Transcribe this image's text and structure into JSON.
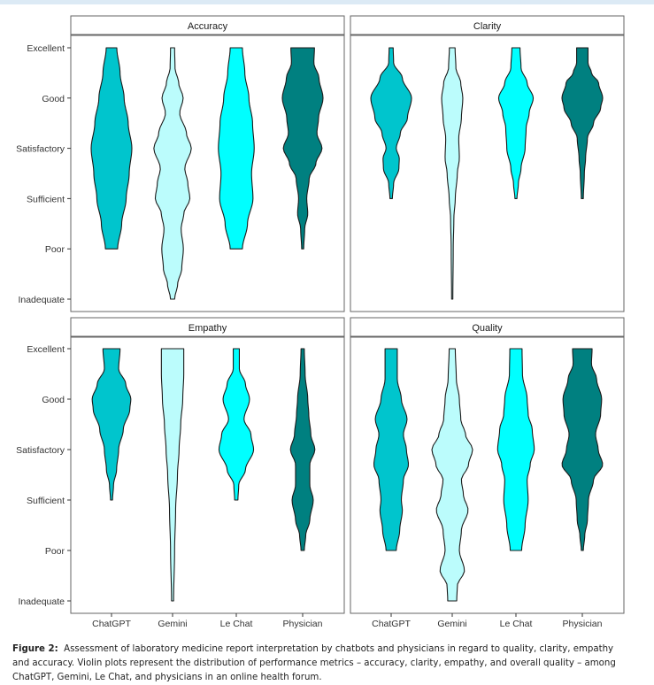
{
  "chart_data": {
    "type": "violin",
    "y_levels": [
      "Inadequate",
      "Poor",
      "Sufficient",
      "Satisfactory",
      "Good",
      "Excellent"
    ],
    "categories": [
      "ChatGPT",
      "Gemini",
      "Le Chat",
      "Physician"
    ],
    "colors": {
      "ChatGPT": "#00c5cd",
      "Gemini": "#bbfcfc",
      "Le Chat": "#00ffff",
      "Physician": "#008080"
    },
    "grid": false,
    "panels": [
      {
        "title": "Accuracy",
        "violins": [
          {
            "category": "ChatGPT",
            "range": [
              2,
              6
            ],
            "density": [
              [
                2,
                0.3
              ],
              [
                2.5,
                0.5
              ],
              [
                3,
                0.72
              ],
              [
                3.5,
                0.87
              ],
              [
                4,
                1.0
              ],
              [
                4.5,
                0.82
              ],
              [
                5,
                0.62
              ],
              [
                5.5,
                0.42
              ],
              [
                6,
                0.26
              ]
            ]
          },
          {
            "category": "Gemini",
            "range": [
              1,
              6
            ],
            "density": [
              [
                1,
                0.1
              ],
              [
                1.3,
                0.25
              ],
              [
                1.6,
                0.45
              ],
              [
                2,
                0.53
              ],
              [
                2.4,
                0.42
              ],
              [
                2.7,
                0.55
              ],
              [
                3,
                0.85
              ],
              [
                3.3,
                0.75
              ],
              [
                3.6,
                0.6
              ],
              [
                4,
                0.92
              ],
              [
                4.3,
                0.68
              ],
              [
                4.7,
                0.35
              ],
              [
                5,
                0.52
              ],
              [
                5.3,
                0.3
              ],
              [
                5.6,
                0.12
              ],
              [
                6,
                0.1
              ]
            ]
          },
          {
            "category": "Le Chat",
            "range": [
              2,
              6
            ],
            "density": [
              [
                2,
                0.3
              ],
              [
                2.5,
                0.55
              ],
              [
                3,
                0.82
              ],
              [
                3.5,
                0.75
              ],
              [
                4,
                0.88
              ],
              [
                4.5,
                0.8
              ],
              [
                5,
                0.62
              ],
              [
                5.5,
                0.42
              ],
              [
                6,
                0.3
              ]
            ]
          },
          {
            "category": "Physician",
            "range": [
              2,
              6
            ],
            "density": [
              [
                2,
                0.05
              ],
              [
                2.4,
                0.1
              ],
              [
                2.7,
                0.25
              ],
              [
                3,
                0.2
              ],
              [
                3.4,
                0.32
              ],
              [
                3.7,
                0.65
              ],
              [
                4,
                0.95
              ],
              [
                4.3,
                0.7
              ],
              [
                4.6,
                0.78
              ],
              [
                5,
                1.0
              ],
              [
                5.4,
                0.8
              ],
              [
                5.7,
                0.55
              ],
              [
                6,
                0.58
              ]
            ]
          }
        ]
      },
      {
        "title": "Clarity",
        "violins": [
          {
            "category": "ChatGPT",
            "range": [
              3,
              6
            ],
            "density": [
              [
                3,
                0.06
              ],
              [
                3.3,
                0.12
              ],
              [
                3.6,
                0.38
              ],
              [
                3.8,
                0.4
              ],
              [
                4,
                0.25
              ],
              [
                4.3,
                0.45
              ],
              [
                4.6,
                0.8
              ],
              [
                5,
                1.0
              ],
              [
                5.4,
                0.55
              ],
              [
                5.7,
                0.12
              ],
              [
                6,
                0.1
              ]
            ]
          },
          {
            "category": "Gemini",
            "range": [
              1,
              6
            ],
            "density": [
              [
                1,
                0.03
              ],
              [
                2,
                0.05
              ],
              [
                2.6,
                0.08
              ],
              [
                3,
                0.15
              ],
              [
                3.5,
                0.25
              ],
              [
                3.8,
                0.35
              ],
              [
                4.2,
                0.32
              ],
              [
                4.6,
                0.45
              ],
              [
                5,
                0.52
              ],
              [
                5.3,
                0.42
              ],
              [
                5.6,
                0.18
              ],
              [
                6,
                0.14
              ]
            ]
          },
          {
            "category": "Le Chat",
            "range": [
              3,
              6
            ],
            "density": [
              [
                3,
                0.05
              ],
              [
                3.3,
                0.12
              ],
              [
                3.6,
                0.25
              ],
              [
                4,
                0.45
              ],
              [
                4.4,
                0.5
              ],
              [
                4.7,
                0.65
              ],
              [
                5,
                0.85
              ],
              [
                5.3,
                0.55
              ],
              [
                5.6,
                0.25
              ],
              [
                6,
                0.2
              ]
            ]
          },
          {
            "category": "Physician",
            "range": [
              3,
              6
            ],
            "density": [
              [
                3,
                0.05
              ],
              [
                3.5,
                0.1
              ],
              [
                3.8,
                0.16
              ],
              [
                4.2,
                0.25
              ],
              [
                4.5,
                0.55
              ],
              [
                4.8,
                0.9
              ],
              [
                5,
                1.0
              ],
              [
                5.3,
                0.8
              ],
              [
                5.5,
                0.45
              ],
              [
                5.7,
                0.28
              ],
              [
                6,
                0.28
              ]
            ]
          }
        ]
      },
      {
        "title": "Empathy",
        "violins": [
          {
            "category": "ChatGPT",
            "range": [
              3,
              6
            ],
            "density": [
              [
                3,
                0.05
              ],
              [
                3.3,
                0.1
              ],
              [
                3.6,
                0.25
              ],
              [
                4,
                0.35
              ],
              [
                4.4,
                0.58
              ],
              [
                4.8,
                0.9
              ],
              [
                5,
                0.95
              ],
              [
                5.3,
                0.7
              ],
              [
                5.6,
                0.35
              ],
              [
                6,
                0.42
              ]
            ]
          },
          {
            "category": "Gemini",
            "range": [
              1,
              6
            ],
            "density": [
              [
                1,
                0.05
              ],
              [
                2,
                0.1
              ],
              [
                2.8,
                0.15
              ],
              [
                3.5,
                0.24
              ],
              [
                4,
                0.32
              ],
              [
                4.5,
                0.4
              ],
              [
                5,
                0.5
              ],
              [
                5.5,
                0.55
              ],
              [
                6,
                0.55
              ]
            ]
          },
          {
            "category": "Le Chat",
            "range": [
              3,
              6
            ],
            "density": [
              [
                3,
                0.08
              ],
              [
                3.3,
                0.12
              ],
              [
                3.6,
                0.45
              ],
              [
                4,
                0.85
              ],
              [
                4.3,
                0.72
              ],
              [
                4.6,
                0.38
              ],
              [
                5,
                0.65
              ],
              [
                5.3,
                0.45
              ],
              [
                5.6,
                0.15
              ],
              [
                6,
                0.15
              ]
            ]
          },
          {
            "category": "Physician",
            "range": [
              2,
              6
            ],
            "density": [
              [
                2,
                0.08
              ],
              [
                2.3,
                0.15
              ],
              [
                2.6,
                0.35
              ],
              [
                3,
                0.52
              ],
              [
                3.3,
                0.35
              ],
              [
                3.7,
                0.35
              ],
              [
                4,
                0.6
              ],
              [
                4.3,
                0.4
              ],
              [
                4.7,
                0.3
              ],
              [
                5,
                0.25
              ],
              [
                5.5,
                0.12
              ],
              [
                6,
                0.08
              ]
            ]
          }
        ]
      },
      {
        "title": "Quality",
        "violins": [
          {
            "category": "ChatGPT",
            "range": [
              2,
              6
            ],
            "density": [
              [
                2,
                0.25
              ],
              [
                2.4,
                0.42
              ],
              [
                2.8,
                0.55
              ],
              [
                3,
                0.5
              ],
              [
                3.4,
                0.6
              ],
              [
                3.7,
                0.85
              ],
              [
                4,
                0.75
              ],
              [
                4.3,
                0.6
              ],
              [
                4.6,
                0.78
              ],
              [
                5,
                0.5
              ],
              [
                5.4,
                0.3
              ],
              [
                6,
                0.3
              ]
            ]
          },
          {
            "category": "Gemini",
            "range": [
              1,
              6
            ],
            "density": [
              [
                1,
                0.22
              ],
              [
                1.3,
                0.25
              ],
              [
                1.6,
                0.6
              ],
              [
                2,
                0.35
              ],
              [
                2.4,
                0.45
              ],
              [
                2.8,
                0.78
              ],
              [
                3.1,
                0.55
              ],
              [
                3.4,
                0.45
              ],
              [
                3.7,
                0.8
              ],
              [
                4,
                1.0
              ],
              [
                4.3,
                0.65
              ],
              [
                4.6,
                0.42
              ],
              [
                5,
                0.35
              ],
              [
                5.4,
                0.2
              ],
              [
                6,
                0.15
              ]
            ]
          },
          {
            "category": "Le Chat",
            "range": [
              2,
              6
            ],
            "density": [
              [
                2,
                0.28
              ],
              [
                2.5,
                0.45
              ],
              [
                3,
                0.6
              ],
              [
                3.4,
                0.55
              ],
              [
                3.7,
                0.7
              ],
              [
                4,
                0.9
              ],
              [
                4.4,
                0.8
              ],
              [
                4.7,
                0.6
              ],
              [
                5,
                0.55
              ],
              [
                5.5,
                0.32
              ],
              [
                6,
                0.3
              ]
            ]
          },
          {
            "category": "Physician",
            "range": [
              2,
              6
            ],
            "density": [
              [
                2,
                0.05
              ],
              [
                2.3,
                0.12
              ],
              [
                2.6,
                0.25
              ],
              [
                3,
                0.3
              ],
              [
                3.4,
                0.55
              ],
              [
                3.7,
                1.0
              ],
              [
                4,
                0.78
              ],
              [
                4.3,
                0.65
              ],
              [
                4.7,
                0.9
              ],
              [
                5,
                0.95
              ],
              [
                5.4,
                0.7
              ],
              [
                5.7,
                0.45
              ],
              [
                6,
                0.48
              ]
            ]
          }
        ]
      }
    ]
  },
  "caption": {
    "label": "Figure 2:",
    "text": "Assessment of laboratory medicine report interpretation by chatbots and physicians in regard to quality, clarity, empathy and accuracy. Violin plots represent the distribution of performance metrics – accuracy, clarity, empathy, and overall quality – among ChatGPT, Gemini, Le Chat, and physicians in an online health forum."
  }
}
